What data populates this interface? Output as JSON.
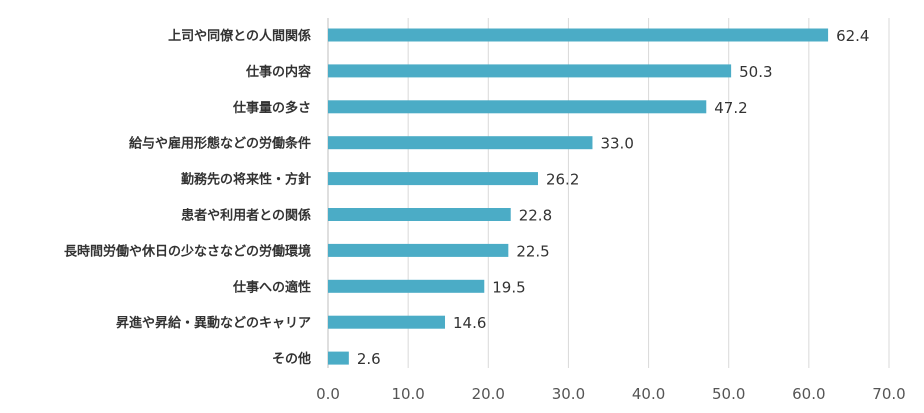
{
  "chart_data": {
    "type": "bar",
    "orientation": "horizontal",
    "categories": [
      "上司や同僚との人間関係",
      "仕事の内容",
      "仕事量の多さ",
      "給与や雇用形態などの労働条件",
      "勤務先の将来性・方針",
      "患者や利用者との関係",
      "長時間労働や休日の少なさなどの労働環境",
      "仕事への適性",
      "昇進や昇給・異動などのキャリア",
      "その他"
    ],
    "values": [
      62.4,
      50.3,
      47.2,
      33.0,
      26.2,
      22.8,
      22.5,
      19.5,
      14.6,
      2.6
    ],
    "value_labels": [
      "62.4",
      "50.3",
      "47.2",
      "33.0",
      "26.2",
      "22.8",
      "22.5",
      "19.5",
      "14.6",
      "2.6"
    ],
    "xlim": [
      0,
      70
    ],
    "xticks": [
      "0.0",
      "10.0",
      "20.0",
      "30.0",
      "40.0",
      "50.0",
      "60.0",
      "70.0"
    ],
    "title": "",
    "xlabel": "",
    "ylabel": "",
    "grid": true,
    "bar_color": "#4bacc6"
  }
}
